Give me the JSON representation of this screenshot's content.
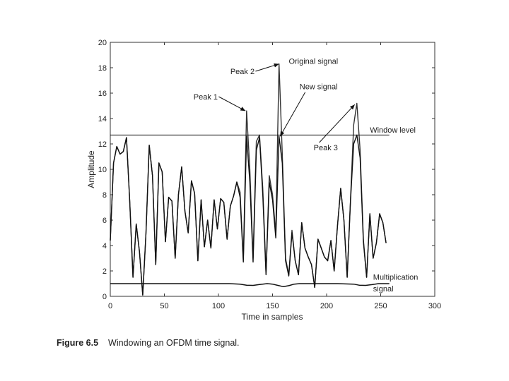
{
  "chart_data": {
    "type": "line",
    "title": "",
    "xlabel": "Time in samples",
    "ylabel": "Amplitude",
    "xlim": [
      0,
      300
    ],
    "ylim": [
      0,
      20
    ],
    "xticks": [
      0,
      50,
      100,
      150,
      200,
      250,
      300
    ],
    "yticks": [
      0,
      2,
      4,
      6,
      8,
      10,
      12,
      14,
      16,
      18,
      20
    ],
    "grid": false,
    "series": [
      {
        "name": "Original signal",
        "color": "#333333",
        "x": [
          0,
          3,
          6,
          9,
          12,
          15,
          18,
          21,
          24,
          27,
          30,
          33,
          36,
          39,
          42,
          45,
          48,
          51,
          54,
          57,
          60,
          63,
          66,
          69,
          72,
          75,
          78,
          81,
          84,
          87,
          90,
          93,
          96,
          99,
          102,
          105,
          108,
          111,
          114,
          117,
          120,
          123,
          126,
          129,
          132,
          135,
          138,
          141,
          144,
          147,
          150,
          153,
          156,
          159,
          162,
          165,
          168,
          171,
          174,
          177,
          180,
          183,
          186,
          189,
          192,
          195,
          198,
          201,
          204,
          207,
          210,
          213,
          216,
          219,
          222,
          225,
          228,
          231,
          234,
          237,
          240,
          243,
          246,
          249,
          252,
          255,
          258
        ],
        "y": [
          4.4,
          10.5,
          11.8,
          11.2,
          11.4,
          12.5,
          7.5,
          1.5,
          5.7,
          3.5,
          0.1,
          5.0,
          11.9,
          9.5,
          2.5,
          10.5,
          9.8,
          4.3,
          7.8,
          7.5,
          3.0,
          8.0,
          10.2,
          6.7,
          5.0,
          9.1,
          8.1,
          2.8,
          7.6,
          3.9,
          6.0,
          3.8,
          7.6,
          5.3,
          7.7,
          7.4,
          4.5,
          7.1,
          7.9,
          9.0,
          8.2,
          2.9,
          14.6,
          10.0,
          3.0,
          12.2,
          12.7,
          8.5,
          1.8,
          9.5,
          8.0,
          5.0,
          18.3,
          11.2,
          3.0,
          1.7,
          5.2,
          2.8,
          1.7,
          5.8,
          3.8,
          3.1,
          2.5,
          0.7,
          4.5,
          3.8,
          3.1,
          2.8,
          4.4,
          2.0,
          5.5,
          8.5,
          6.0,
          1.5,
          7.5,
          13.5,
          15.2,
          11.5,
          4.5,
          1.5,
          6.5,
          3.0,
          4.2,
          6.5,
          5.8,
          4.2,
          null
        ],
        "y_end_note": ""
      },
      {
        "name": "New signal",
        "color": "#111111",
        "x": [
          0,
          3,
          6,
          9,
          12,
          15,
          18,
          21,
          24,
          27,
          30,
          33,
          36,
          39,
          42,
          45,
          48,
          51,
          54,
          57,
          60,
          63,
          66,
          69,
          72,
          75,
          78,
          81,
          84,
          87,
          90,
          93,
          96,
          99,
          102,
          105,
          108,
          111,
          114,
          117,
          120,
          123,
          126,
          129,
          132,
          135,
          138,
          141,
          144,
          147,
          150,
          153,
          156,
          159,
          162,
          165,
          168,
          171,
          174,
          177,
          180,
          183,
          186,
          189,
          192,
          195,
          198,
          201,
          204,
          207,
          210,
          213,
          216,
          219,
          222,
          225,
          228,
          231,
          234,
          237,
          240,
          243,
          246,
          249,
          252,
          255
        ],
        "y": [
          4.4,
          10.5,
          11.8,
          11.2,
          11.4,
          12.5,
          7.5,
          1.5,
          5.7,
          3.5,
          0.1,
          5.0,
          11.9,
          9.5,
          2.5,
          10.5,
          9.8,
          4.3,
          7.8,
          7.5,
          3.0,
          8.0,
          10.2,
          6.7,
          5.0,
          9.1,
          8.1,
          2.8,
          7.6,
          3.9,
          6.0,
          3.8,
          7.6,
          5.3,
          7.7,
          7.4,
          4.5,
          7.1,
          7.9,
          9.0,
          7.8,
          2.7,
          12.6,
          9.0,
          2.7,
          11.5,
          12.5,
          8.0,
          1.7,
          9.0,
          7.6,
          4.6,
          12.6,
          10.5,
          2.8,
          1.6,
          5.0,
          2.8,
          1.7,
          5.8,
          3.8,
          3.1,
          2.5,
          0.7,
          4.5,
          3.8,
          3.1,
          2.8,
          4.4,
          2.0,
          5.5,
          8.5,
          6.0,
          1.5,
          7.4,
          12.0,
          12.7,
          10.9,
          4.3,
          1.5,
          6.5,
          3.0,
          4.2,
          6.5,
          5.8,
          4.2
        ]
      },
      {
        "name": "Window level",
        "color": "#111111",
        "x": [
          0,
          258
        ],
        "y": [
          12.7,
          12.7
        ]
      },
      {
        "name": "Multiplication signal",
        "color": "#111111",
        "x": [
          0,
          110,
          120,
          126,
          132,
          138,
          145,
          150,
          156,
          160,
          165,
          170,
          175,
          180,
          210,
          225,
          230,
          236,
          242,
          248,
          258
        ],
        "y": [
          1.0,
          1.0,
          0.96,
          0.88,
          0.86,
          0.93,
          1.0,
          0.96,
          0.84,
          0.76,
          0.84,
          0.96,
          1.0,
          1.0,
          1.0,
          0.96,
          0.88,
          0.86,
          0.92,
          1.0,
          1.0
        ]
      }
    ],
    "annotations": [
      {
        "text": "Peak 1",
        "x": 77,
        "y": 15.5,
        "target_x": 125,
        "target_y": 14.6
      },
      {
        "text": "Peak 2",
        "x": 111,
        "y": 17.5,
        "target_x": 156,
        "target_y": 18.3
      },
      {
        "text": "Original signal",
        "x": 165,
        "y": 18.3
      },
      {
        "text": "New signal",
        "x": 175,
        "y": 16.3,
        "target_x": 157,
        "target_y": 12.6
      },
      {
        "text": "Window level",
        "x": 240,
        "y": 12.9
      },
      {
        "text": "Peak 3",
        "x": 188,
        "y": 11.5,
        "target_x": 226,
        "target_y": 15.1
      },
      {
        "text": "Multiplication",
        "x": 243,
        "y": 1.3
      },
      {
        "text": "signal",
        "x": 243,
        "y": 0.4
      }
    ]
  },
  "caption": {
    "figure_number": "Figure 6.5",
    "text": "Windowing an OFDM time signal."
  }
}
